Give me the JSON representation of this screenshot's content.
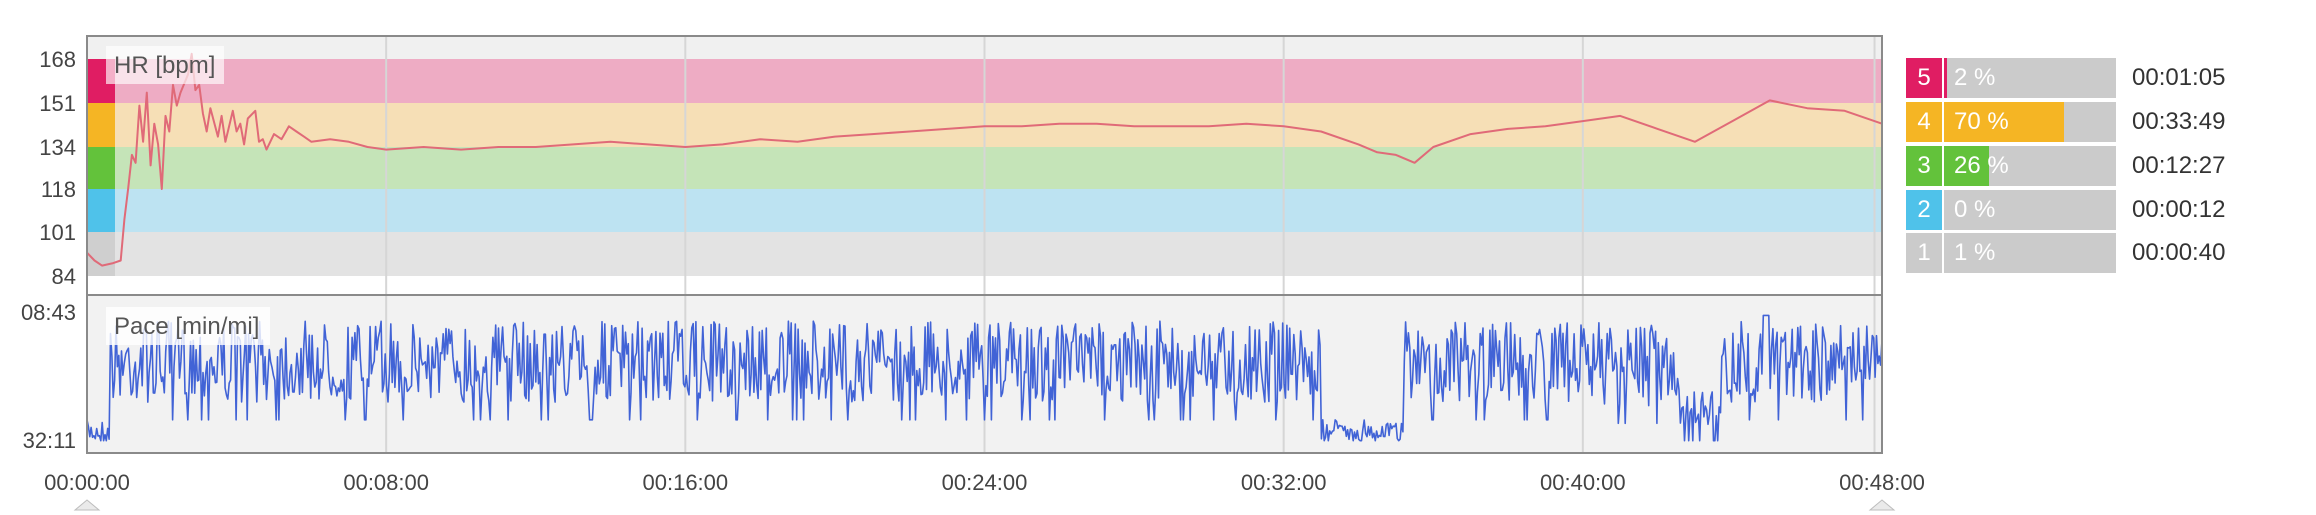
{
  "chart_data": {
    "type": "line",
    "x_ticks": [
      "00:00:00",
      "00:08:00",
      "00:16:00",
      "00:24:00",
      "00:32:00",
      "00:40:00",
      "00:48:00"
    ],
    "x_range_minutes": [
      0,
      48
    ],
    "hr_panel": {
      "label": "HR [bpm]",
      "y_ticks": [
        "168",
        "151",
        "134",
        "118",
        "101",
        "84"
      ],
      "zone_colors": [
        "#e3e3e3",
        "#bde3f2",
        "#c5e4b8",
        "#f6dfb6",
        "#eeacc4"
      ],
      "zone_edge_colors": [
        "#cfcfcf",
        "#4fc2ea",
        "#63c23b",
        "#f5b524",
        "#e01d63"
      ],
      "line_color": "#e06a78",
      "series": [
        [
          0,
          93
        ],
        [
          0.2,
          90
        ],
        [
          0.4,
          88
        ],
        [
          0.7,
          89
        ],
        [
          0.9,
          90
        ],
        [
          1.0,
          106
        ],
        [
          1.1,
          118
        ],
        [
          1.2,
          131
        ],
        [
          1.3,
          128
        ],
        [
          1.4,
          150
        ],
        [
          1.5,
          136
        ],
        [
          1.6,
          155
        ],
        [
          1.7,
          127
        ],
        [
          1.8,
          143
        ],
        [
          1.9,
          135
        ],
        [
          2.0,
          118
        ],
        [
          2.1,
          146
        ],
        [
          2.2,
          140
        ],
        [
          2.3,
          158
        ],
        [
          2.4,
          150
        ],
        [
          2.5,
          155
        ],
        [
          2.7,
          162
        ],
        [
          2.8,
          170
        ],
        [
          2.9,
          156
        ],
        [
          3.0,
          158
        ],
        [
          3.1,
          147
        ],
        [
          3.2,
          140
        ],
        [
          3.3,
          149
        ],
        [
          3.5,
          138
        ],
        [
          3.6,
          146
        ],
        [
          3.7,
          136
        ],
        [
          3.9,
          148
        ],
        [
          4.0,
          140
        ],
        [
          4.1,
          143
        ],
        [
          4.2,
          135
        ],
        [
          4.3,
          145
        ],
        [
          4.5,
          148
        ],
        [
          4.6,
          136
        ],
        [
          4.7,
          137
        ],
        [
          4.8,
          133
        ],
        [
          5.0,
          139
        ],
        [
          5.2,
          137
        ],
        [
          5.4,
          142
        ],
        [
          5.6,
          140
        ],
        [
          5.8,
          138
        ],
        [
          6.0,
          136
        ],
        [
          6.5,
          137
        ],
        [
          7.0,
          136
        ],
        [
          7.5,
          134
        ],
        [
          8.0,
          133
        ],
        [
          9,
          134
        ],
        [
          10,
          133
        ],
        [
          11,
          134
        ],
        [
          12,
          134
        ],
        [
          13,
          135
        ],
        [
          14,
          136
        ],
        [
          15,
          135
        ],
        [
          16,
          134
        ],
        [
          17,
          135
        ],
        [
          18,
          137
        ],
        [
          19,
          136
        ],
        [
          20,
          138
        ],
        [
          21,
          139
        ],
        [
          22,
          140
        ],
        [
          23,
          141
        ],
        [
          24,
          142
        ],
        [
          25,
          142
        ],
        [
          26,
          143
        ],
        [
          27,
          143
        ],
        [
          28,
          142
        ],
        [
          29,
          142
        ],
        [
          30,
          142
        ],
        [
          31,
          143
        ],
        [
          32,
          142
        ],
        [
          33,
          140
        ],
        [
          34,
          135
        ],
        [
          34.5,
          132
        ],
        [
          35,
          131
        ],
        [
          35.5,
          128
        ],
        [
          36,
          134
        ],
        [
          37,
          139
        ],
        [
          38,
          141
        ],
        [
          39,
          142
        ],
        [
          40,
          144
        ],
        [
          41,
          146
        ],
        [
          42,
          141
        ],
        [
          43,
          136
        ],
        [
          44,
          144
        ],
        [
          45,
          152
        ],
        [
          46,
          149
        ],
        [
          47,
          148
        ],
        [
          48,
          143
        ]
      ]
    },
    "pace_panel": {
      "label": "Pace [min/mi]",
      "y_ticks": [
        "08:43",
        "32:11"
      ],
      "line_color": "#4163d6"
    },
    "zones": [
      {
        "zone": "5",
        "percent_text": "2 %",
        "percent": 2,
        "time": "00:01:05",
        "color": "#e01d63"
      },
      {
        "zone": "4",
        "percent_text": "70 %",
        "percent": 70,
        "time": "00:33:49",
        "color": "#f5b524"
      },
      {
        "zone": "3",
        "percent_text": "26 %",
        "percent": 26,
        "time": "00:12:27",
        "color": "#63c23b"
      },
      {
        "zone": "2",
        "percent_text": "0 %",
        "percent": 0,
        "time": "00:00:12",
        "color": "#4fc2ea"
      },
      {
        "zone": "1",
        "percent_text": "1 %",
        "percent": 1,
        "time": "00:00:40",
        "color": "#cbcbcb"
      }
    ]
  }
}
